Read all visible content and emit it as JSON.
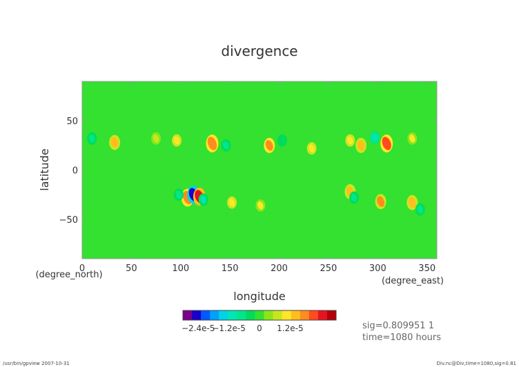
{
  "chart_data": {
    "type": "heatmap",
    "title": "divergence",
    "xlabel": "longitude",
    "ylabel": "latitude",
    "x_unit": "(degree_east)",
    "y_unit": "(degree_north)",
    "xlim": [
      0,
      360
    ],
    "ylim": [
      -90,
      90
    ],
    "x_ticks": [
      "0",
      "50",
      "100",
      "150",
      "200",
      "250",
      "300",
      "350"
    ],
    "y_ticks": [
      "50",
      "0",
      "−50"
    ],
    "x_tick_values": [
      0,
      50,
      100,
      150,
      200,
      250,
      300,
      350
    ],
    "y_tick_values": [
      50,
      0,
      -50
    ],
    "background_value": 0,
    "features": [
      {
        "lon": 10,
        "lat": 32,
        "value": -8e-06
      },
      {
        "lon": 33,
        "lat": 28,
        "value": 1.5e-05
      },
      {
        "lon": 75,
        "lat": 32,
        "value": 8e-06
      },
      {
        "lon": 96,
        "lat": 30,
        "value": 1.1e-05
      },
      {
        "lon": 132,
        "lat": 27,
        "value": 1.9e-05
      },
      {
        "lon": 146,
        "lat": 25,
        "value": -6e-06
      },
      {
        "lon": 190,
        "lat": 25,
        "value": 1.7e-05
      },
      {
        "lon": 203,
        "lat": 30,
        "value": -5e-06
      },
      {
        "lon": 233,
        "lat": 22,
        "value": 1e-05
      },
      {
        "lon": 272,
        "lat": 30,
        "value": 1e-05
      },
      {
        "lon": 283,
        "lat": 25,
        "value": 1.3e-05
      },
      {
        "lon": 297,
        "lat": 33,
        "value": -1e-05
      },
      {
        "lon": 309,
        "lat": 27,
        "value": 2e-05
      },
      {
        "lon": 335,
        "lat": 32,
        "value": 9e-06
      },
      {
        "lon": 107,
        "lat": -28,
        "value": 1.9e-05
      },
      {
        "lon": 113,
        "lat": -25,
        "value": -2.4e-05
      },
      {
        "lon": 119,
        "lat": -27,
        "value": 2.3e-05
      },
      {
        "lon": 123,
        "lat": -30,
        "value": -9e-06
      },
      {
        "lon": 98,
        "lat": -25,
        "value": -8e-06
      },
      {
        "lon": 152,
        "lat": -33,
        "value": 1.2e-05
      },
      {
        "lon": 181,
        "lat": -36,
        "value": 9e-06
      },
      {
        "lon": 272,
        "lat": -22,
        "value": 1.4e-05
      },
      {
        "lon": 276,
        "lat": -28,
        "value": -6e-06
      },
      {
        "lon": 303,
        "lat": -32,
        "value": 1.6e-05
      },
      {
        "lon": 335,
        "lat": -33,
        "value": 1.3e-05
      },
      {
        "lon": 343,
        "lat": -40,
        "value": -6e-06
      }
    ],
    "colorbar": {
      "colors": [
        "#7a008a",
        "#1a00c8",
        "#0058ff",
        "#00a0ff",
        "#00d2e8",
        "#00e6b4",
        "#00e68c",
        "#00dc5a",
        "#34e030",
        "#8ae619",
        "#c8e61e",
        "#ffe628",
        "#ffbe1e",
        "#ff8c1e",
        "#ff4b1e",
        "#e6141e",
        "#b4000a"
      ],
      "vmin": -3e-05,
      "vmax": 3e-05,
      "tick_labels": [
        "−2.4e-5",
        "−1.2e-5",
        "0",
        "1.2e-5"
      ],
      "tick_values": [
        -2.4e-05,
        -1.2e-05,
        0,
        1.2e-05
      ]
    }
  },
  "info": {
    "sig_line": "sig=0.809951 1",
    "time_line": "time=1080 hours"
  },
  "footer": {
    "left": "/usr/bin/gpview  2007-10-31",
    "right": "Div.nc@Div,time=1080,sig=0.81"
  }
}
